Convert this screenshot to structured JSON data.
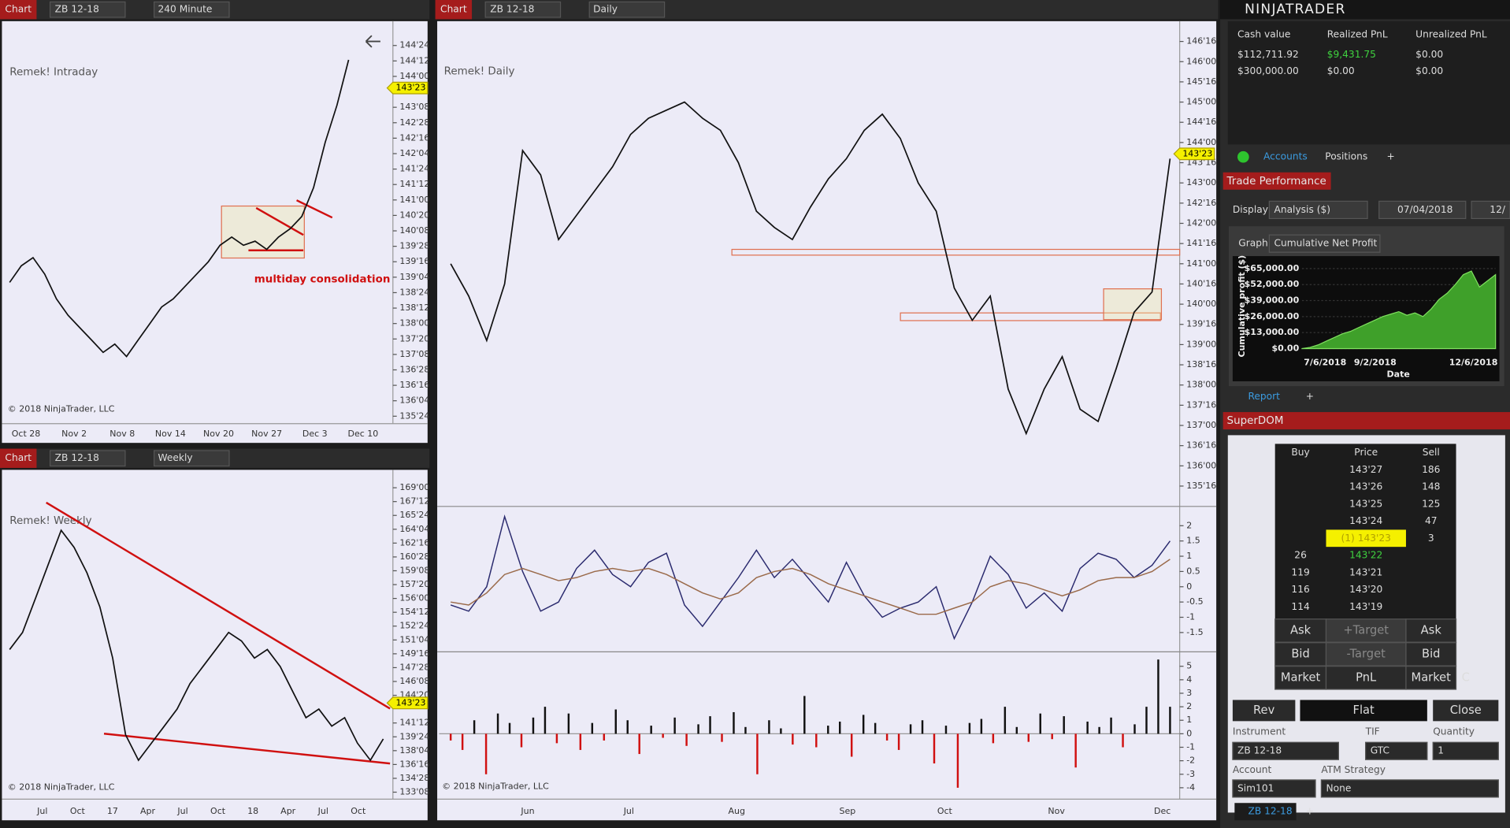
{
  "charts": [
    {
      "header": {
        "tab": "Chart",
        "instrument": "ZB 12-18",
        "interval": "240 Minute"
      },
      "label": "Remek! Intraday",
      "annotation": "multiday consolidation",
      "copyright": "© 2018 NinjaTrader, LLC",
      "ylim": [
        135.57,
        145.27
      ],
      "yticks": [
        {
          "value": 144.75,
          "label": "144'24"
        },
        {
          "value": 144.375,
          "label": "144'12"
        },
        {
          "value": 144,
          "label": "144'00"
        },
        {
          "value": 143.25,
          "label": "143'08"
        },
        {
          "value": 142.875,
          "label": "142'28"
        },
        {
          "value": 142.5,
          "label": "142'16"
        },
        {
          "value": 142.125,
          "label": "142'04"
        },
        {
          "value": 141.75,
          "label": "141'24"
        },
        {
          "value": 141.375,
          "label": "141'12"
        },
        {
          "value": 141,
          "label": "141'00"
        },
        {
          "value": 140.625,
          "label": "140'20"
        },
        {
          "value": 140.25,
          "label": "140'08"
        },
        {
          "value": 139.875,
          "label": "139'28"
        },
        {
          "value": 139.5,
          "label": "139'16"
        },
        {
          "value": 139.125,
          "label": "139'04"
        },
        {
          "value": 138.75,
          "label": "138'24"
        },
        {
          "value": 138.375,
          "label": "138'12"
        },
        {
          "value": 138,
          "label": "138'00"
        },
        {
          "value": 137.625,
          "label": "137'20"
        },
        {
          "value": 137.25,
          "label": "137'08"
        },
        {
          "value": 136.875,
          "label": "136'28"
        },
        {
          "value": 136.5,
          "label": "136'16"
        },
        {
          "value": 136.125,
          "label": "136'04"
        },
        {
          "value": 135.75,
          "label": "135'24"
        }
      ],
      "marker": {
        "value": 143.71875,
        "label": "143'23"
      },
      "x_labels": [
        "Oct 28",
        "Nov 2",
        "Nov 8",
        "Nov 14",
        "Nov 20",
        "Nov 27",
        "Dec 3",
        "Dec 10"
      ],
      "closes": [
        139.0,
        139.4,
        139.6,
        139.2,
        138.6,
        138.2,
        137.9,
        137.6,
        137.3,
        137.5,
        137.2,
        137.6,
        138.0,
        138.4,
        138.6,
        138.9,
        139.2,
        139.5,
        139.9,
        140.1,
        139.9,
        140.0,
        139.8,
        140.1,
        140.3,
        140.6,
        141.3,
        142.4,
        143.3,
        144.4
      ],
      "color": "#111111"
    },
    {
      "header": {
        "tab": "Chart",
        "instrument": "ZB 12-18",
        "interval": "Weekly"
      },
      "label": "Remek! Weekly",
      "copyright": "© 2018 NinjaTrader, LLC",
      "ylim": [
        132.66,
        170.65
      ],
      "yticks": [
        {
          "value": 169,
          "label": "169'00"
        },
        {
          "value": 167.375,
          "label": "167'12"
        },
        {
          "value": 165.75,
          "label": "165'24"
        },
        {
          "value": 164.125,
          "label": "164'04"
        },
        {
          "value": 162.5,
          "label": "162'16"
        },
        {
          "value": 160.875,
          "label": "160'28"
        },
        {
          "value": 159.25,
          "label": "159'08"
        },
        {
          "value": 157.625,
          "label": "157'20"
        },
        {
          "value": 156,
          "label": "156'00"
        },
        {
          "value": 154.375,
          "label": "154'12"
        },
        {
          "value": 152.75,
          "label": "152'24"
        },
        {
          "value": 151.125,
          "label": "151'04"
        },
        {
          "value": 149.5,
          "label": "149'16"
        },
        {
          "value": 147.875,
          "label": "147'28"
        },
        {
          "value": 146.25,
          "label": "146'08"
        },
        {
          "value": 144.625,
          "label": "144'20"
        },
        {
          "value": 141.375,
          "label": "141'12"
        },
        {
          "value": 139.75,
          "label": "139'24"
        },
        {
          "value": 138.125,
          "label": "138'04"
        },
        {
          "value": 136.5,
          "label": "136'16"
        },
        {
          "value": 134.875,
          "label": "134'28"
        },
        {
          "value": 133.25,
          "label": "133'08"
        }
      ],
      "marker": {
        "value": 143.71875,
        "label": "143'23"
      },
      "x_labels": [
        "Jul",
        "Oct",
        "17",
        "Apr",
        "Jul",
        "Oct",
        "18",
        "Apr",
        "Jul",
        "Oct"
      ],
      "closes": [
        150,
        152,
        156,
        160,
        164,
        162,
        159,
        155,
        149,
        140,
        137,
        139,
        141,
        143,
        146,
        148,
        150,
        152,
        151,
        149,
        150,
        148,
        145,
        142,
        143,
        141,
        142,
        139,
        137,
        139.5
      ],
      "color": "#111111"
    },
    {
      "header": {
        "tab": "Chart",
        "instrument": "ZB 12-18",
        "interval": "Daily"
      },
      "label": "Remek! Daily",
      "copyright": "© 2018 NinjaTrader, LLC",
      "ylim": [
        135.02,
        146.93
      ],
      "yticks": [
        {
          "value": 146.5,
          "label": "146'16"
        },
        {
          "value": 146,
          "label": "146'00"
        },
        {
          "value": 145.5,
          "label": "145'16"
        },
        {
          "value": 145,
          "label": "145'00"
        },
        {
          "value": 144.5,
          "label": "144'16"
        },
        {
          "value": 144,
          "label": "144'00"
        },
        {
          "value": 143.5,
          "label": "143'16"
        },
        {
          "value": 143,
          "label": "143'00"
        },
        {
          "value": 142.5,
          "label": "142'16"
        },
        {
          "value": 142,
          "label": "142'00"
        },
        {
          "value": 141.5,
          "label": "141'16"
        },
        {
          "value": 141,
          "label": "141'00"
        },
        {
          "value": 140.5,
          "label": "140'16"
        },
        {
          "value": 140,
          "label": "140'00"
        },
        {
          "value": 139.5,
          "label": "139'16"
        },
        {
          "value": 139,
          "label": "139'00"
        },
        {
          "value": 138.5,
          "label": "138'16"
        },
        {
          "value": 138,
          "label": "138'00"
        },
        {
          "value": 137.5,
          "label": "137'16"
        },
        {
          "value": 137,
          "label": "137'00"
        },
        {
          "value": 136.5,
          "label": "136'16"
        },
        {
          "value": 136,
          "label": "136'00"
        },
        {
          "value": 135.5,
          "label": "135'16"
        }
      ],
      "marker": {
        "value": 143.71875,
        "label": "143'23"
      },
      "x_labels": [
        "Jun",
        "Jul",
        "Aug",
        "Sep",
        "Oct",
        "Nov",
        "Dec"
      ],
      "closes": [
        141.0,
        140.2,
        139.1,
        140.5,
        143.8,
        143.2,
        141.6,
        142.2,
        142.8,
        143.4,
        144.2,
        144.6,
        144.8,
        145.0,
        144.6,
        144.3,
        143.5,
        142.3,
        141.9,
        141.6,
        142.4,
        143.1,
        143.6,
        144.3,
        144.7,
        144.1,
        143.0,
        142.3,
        140.4,
        139.6,
        140.2,
        137.9,
        136.8,
        137.9,
        138.7,
        137.4,
        137.1,
        138.4,
        139.8,
        140.3,
        143.6
      ],
      "color": "#111111",
      "panels": [
        {
          "ylim": [
            -2.1,
            2.6
          ],
          "yticks": [
            2,
            1.5,
            1,
            0.5,
            0,
            -0.5,
            -1,
            -1.5
          ],
          "series": [
            {
              "color": "#2a2a6e",
              "values": [
                -0.6,
                -0.8,
                0,
                2.3,
                0.5,
                -0.8,
                -0.5,
                0.6,
                1.2,
                0.4,
                0.0,
                0.8,
                1.1,
                -0.6,
                -1.3,
                -0.5,
                0.3,
                1.2,
                0.3,
                0.9,
                0.2,
                -0.5,
                0.8,
                -0.3,
                -1.0,
                -0.7,
                -0.5,
                0.0,
                -1.7,
                -0.5,
                1.0,
                0.4,
                -0.7,
                -0.2,
                -0.8,
                0.6,
                1.1,
                0.9,
                0.3,
                0.7,
                1.5
              ]
            },
            {
              "color": "#9a6a4a",
              "values": [
                -0.5,
                -0.6,
                -0.2,
                0.4,
                0.6,
                0.4,
                0.2,
                0.3,
                0.5,
                0.6,
                0.5,
                0.6,
                0.4,
                0.1,
                -0.2,
                -0.4,
                -0.2,
                0.3,
                0.5,
                0.6,
                0.4,
                0.1,
                -0.1,
                -0.3,
                -0.5,
                -0.7,
                -0.9,
                -0.9,
                -0.7,
                -0.5,
                0.0,
                0.2,
                0.1,
                -0.1,
                -0.3,
                -0.1,
                0.2,
                0.3,
                0.3,
                0.5,
                0.9
              ]
            }
          ]
        },
        {
          "type": "bar",
          "ylim": [
            -4.7,
            6
          ],
          "yticks": [
            5,
            4,
            3,
            2,
            1,
            0,
            -1,
            -2,
            -3,
            -4
          ],
          "up_color": "#111111",
          "down_color": "#d01010",
          "values": [
            -0.5,
            -1.2,
            1.0,
            -3.0,
            1.5,
            0.8,
            -1.0,
            1.2,
            2.0,
            -0.7,
            1.5,
            -1.2,
            0.8,
            -0.5,
            1.8,
            1.0,
            -1.5,
            0.6,
            -0.3,
            1.2,
            -0.9,
            0.7,
            1.3,
            -0.6,
            1.6,
            0.5,
            -3.0,
            1.0,
            0.4,
            -0.8,
            2.8,
            -1.0,
            0.6,
            0.9,
            -1.7,
            1.4,
            0.8,
            -0.5,
            -1.2,
            0.7,
            1.0,
            -2.2,
            0.6,
            -4.0,
            0.8,
            1.1,
            -0.7,
            2.0,
            0.5,
            -0.6,
            1.5,
            -0.4,
            1.3,
            -2.5,
            0.9,
            0.5,
            1.2,
            -1.0,
            0.7,
            2.0,
            5.5,
            2.0
          ]
        }
      ]
    }
  ],
  "app": {
    "logo": "NINJATRADER",
    "accounts": {
      "columns": [
        "Cash value",
        "Realized PnL",
        "Unrealized PnL"
      ],
      "rows": [
        [
          "$112,711.92",
          "$9,431.75",
          "$0.00"
        ],
        [
          "$300,000.00",
          "$0.00",
          "$0.00"
        ]
      ],
      "tabs": [
        "Accounts",
        "Positions",
        "+"
      ]
    },
    "trade_performance": {
      "title": "Trade Performance",
      "display_label": "Display",
      "display": "Analysis ($)",
      "from_date": "07/04/2018",
      "to_date": "12/",
      "graph_label": "Graph",
      "graph": "Cumulative Net Profit",
      "chart": {
        "ylim": [
          -2300,
          72000
        ],
        "yticks": [
          {
            "value": 65000,
            "label": "$65,000.00"
          },
          {
            "value": 52000,
            "label": "$52,000.00"
          },
          {
            "value": 39000,
            "label": "$39,000.00"
          },
          {
            "value": 26000,
            "label": "$26,000.00"
          },
          {
            "value": 13000,
            "label": "$13,000.00"
          },
          {
            "value": 0,
            "label": "$0.00"
          }
        ],
        "x_labels": [
          "7/6/2018",
          "9/2/2018",
          "12/6/2018"
        ],
        "y_title": "Cumulative profit ($)",
        "x_title": "Date",
        "color": "#3fa02a",
        "values": [
          0,
          1000,
          3000,
          6000,
          9000,
          12000,
          14000,
          17000,
          20000,
          23000,
          26000,
          28000,
          30000,
          27000,
          29000,
          26000,
          32000,
          40000,
          45000,
          52000,
          60000,
          63000,
          50000,
          55000,
          60000
        ]
      },
      "tabs": [
        "Report",
        "+"
      ]
    },
    "superdom": {
      "title": "SuperDOM",
      "columns": [
        "Buy",
        "Price",
        "Sell"
      ],
      "rows": [
        [
          null,
          "143'27",
          "186"
        ],
        [
          null,
          "143'26",
          "148"
        ],
        [
          null,
          "143'25",
          "125"
        ],
        [
          null,
          "143'24",
          "47"
        ],
        [
          null,
          "(1) 143'23",
          "3"
        ],
        [
          "26",
          "143'22",
          null
        ],
        [
          "119",
          "143'21",
          null
        ],
        [
          "116",
          "143'20",
          null
        ],
        [
          "114",
          "143'19",
          null
        ]
      ],
      "actions": [
        [
          "Ask",
          "+Target",
          "Ask"
        ],
        [
          "Bid",
          "-Target",
          "Bid"
        ],
        [
          "Market",
          "PnL",
          "Market",
          "C"
        ]
      ],
      "buttons": [
        "Rev",
        "Flat",
        "Close"
      ],
      "instrument_label": "Instrument",
      "tif_label": "TIF",
      "quantity_label": "Quantity",
      "instrument": "ZB 12-18",
      "tif": "GTC",
      "quantity": "1",
      "account_label": "Account",
      "atm_label": "ATM Strategy",
      "account": "Sim101",
      "atm": "None",
      "tab": "ZB 12-18",
      "tab_add": "+"
    }
  }
}
